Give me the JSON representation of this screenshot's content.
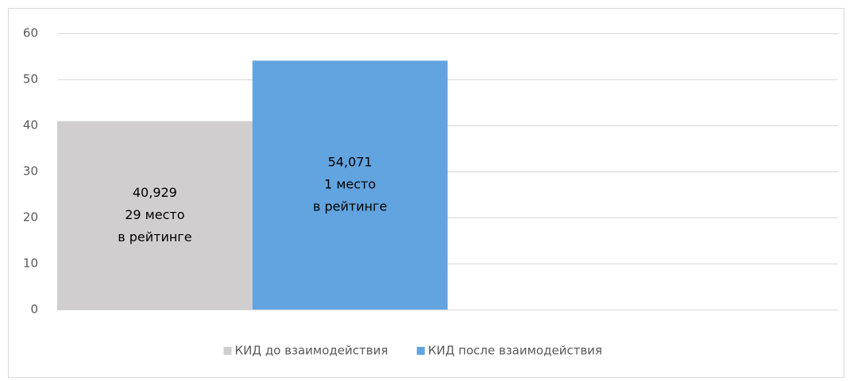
{
  "chart_data": {
    "type": "bar",
    "categories": [
      null,
      null
    ],
    "series": [
      {
        "name": "КИД до взаимодействия",
        "color": "#d0cece",
        "values": [
          40.929,
          null
        ],
        "value_labels": [
          "40,929",
          null
        ],
        "label_lines": [
          [
            "29 место",
            "в рейтинге"
          ],
          null
        ]
      },
      {
        "name": "КИД после взаимодействия",
        "color": "#62a4e0",
        "values": [
          54.071,
          null
        ],
        "value_labels": [
          "54,071",
          null
        ],
        "label_lines": [
          [
            "1 место",
            "в рейтинге"
          ],
          null
        ]
      }
    ],
    "ylim": [
      0,
      60
    ],
    "yticks": [
      0,
      10,
      20,
      30,
      40,
      50,
      60
    ],
    "grid": true,
    "legend": "bottom"
  }
}
